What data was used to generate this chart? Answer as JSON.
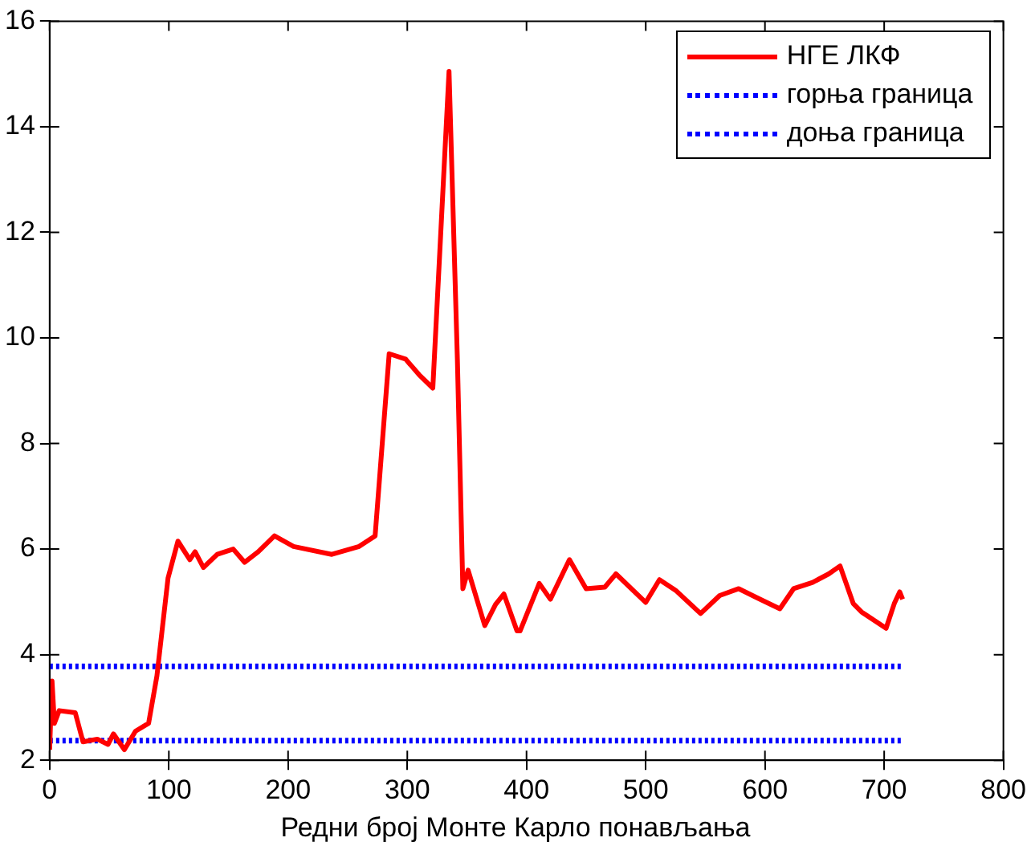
{
  "chart_data": {
    "type": "line",
    "xlabel": "Редни број Монте Карло понављања",
    "xlim": [
      0,
      800
    ],
    "xticks": [
      0,
      100,
      200,
      300,
      400,
      500,
      600,
      700,
      800
    ],
    "ylim": [
      2,
      16
    ],
    "yticks": [
      2,
      4,
      6,
      8,
      10,
      12,
      14,
      16
    ],
    "grid": false,
    "legend": "top right",
    "marker": "none",
    "series": [
      {
        "name": "НГЕ ЛКФ",
        "color": "#ff0000",
        "line_style": "solid",
        "x": [
          0,
          2,
          4,
          8,
          21.5,
          28,
          40,
          49,
          53.5,
          62.7,
          72,
          83,
          90,
          99.3,
          107.6,
          117.6,
          122,
          129,
          140.6,
          154,
          163.5,
          175,
          188.6,
          204.6,
          236.7,
          259.6,
          273,
          284.8,
          298.5,
          310,
          321.4,
          335,
          342,
          346.6,
          351,
          365,
          374,
          381,
          392,
          394.6,
          410.7,
          420,
          436,
          450,
          465.7,
          475,
          500,
          511.5,
          525,
          546,
          562,
          578,
          594,
          612.5,
          624,
          640,
          653.5,
          663,
          674,
          681,
          701.6,
          708.5,
          713,
          715.5
        ],
        "values": [
          2.2,
          3.5,
          2.7,
          2.94,
          2.9,
          2.35,
          2.4,
          2.3,
          2.5,
          2.2,
          2.55,
          2.7,
          3.6,
          5.45,
          6.15,
          5.8,
          5.95,
          5.65,
          5.9,
          6.0,
          5.75,
          5.95,
          6.25,
          6.05,
          5.9,
          6.05,
          6.25,
          9.7,
          9.6,
          9.3,
          9.05,
          15.05,
          9.6,
          5.25,
          5.6,
          4.55,
          4.95,
          5.15,
          4.45,
          4.45,
          5.35,
          5.05,
          5.8,
          5.25,
          5.28,
          5.53,
          4.99,
          5.42,
          5.22,
          4.78,
          5.12,
          5.25,
          5.07,
          4.87,
          5.25,
          5.37,
          5.53,
          5.68,
          4.97,
          4.81,
          4.5,
          4.97,
          5.19,
          5.05
        ]
      },
      {
        "name": "горња граница",
        "color": "#0000ff",
        "line_style": "dotted",
        "x": [
          0,
          715.5
        ],
        "values": [
          3.78,
          3.78
        ]
      },
      {
        "name": "доња граница",
        "color": "#0000ff",
        "line_style": "dotted",
        "x": [
          0,
          715.5
        ],
        "values": [
          2.37,
          2.37
        ]
      }
    ]
  }
}
